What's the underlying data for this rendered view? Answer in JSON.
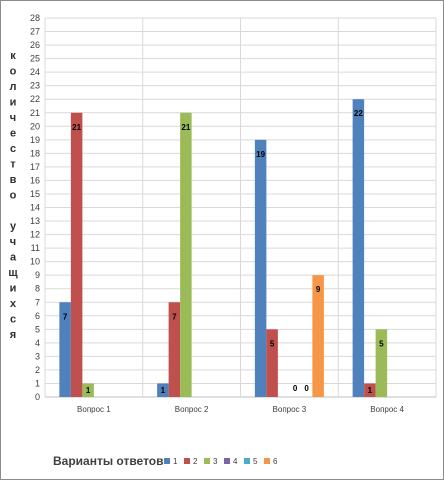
{
  "chart_data": {
    "type": "bar",
    "categories": [
      "Вопрос 1",
      "Вопрос 2",
      "Вопрос 3",
      "Вопрос 4"
    ],
    "series": [
      {
        "name": "1",
        "color": "#4f81bd",
        "values": [
          7,
          1,
          19,
          22
        ]
      },
      {
        "name": "2",
        "color": "#c0504d",
        "values": [
          21,
          7,
          5,
          1
        ]
      },
      {
        "name": "3",
        "color": "#9bbb59",
        "values": [
          1,
          21,
          null,
          5
        ]
      },
      {
        "name": "4",
        "color": "#8064a2",
        "values": [
          null,
          null,
          0,
          null
        ]
      },
      {
        "name": "5",
        "color": "#4bacc6",
        "values": [
          null,
          null,
          0,
          null
        ]
      },
      {
        "name": "6",
        "color": "#f79646",
        "values": [
          null,
          null,
          9,
          null
        ]
      }
    ],
    "data_labels": [
      [
        "7",
        "1",
        "19",
        "22"
      ],
      [
        "21",
        "7",
        "5",
        "1"
      ],
      [
        "1",
        "21",
        null,
        "5"
      ],
      [
        null,
        null,
        "0",
        null
      ],
      [
        null,
        null,
        "0",
        null
      ],
      [
        null,
        null,
        "9",
        null
      ]
    ],
    "bar_value_for_label_one": 1,
    "title": "",
    "xlabel": "Варианты ответов",
    "ylabel": "количество учащихся",
    "ylabel_lines": [
      "к",
      "о",
      "л",
      "и",
      "ч",
      "е",
      "с",
      "т",
      "в",
      "о",
      "",
      "у",
      "ч",
      "а",
      "щ",
      "и",
      "х",
      "с",
      "я"
    ],
    "ylim": [
      0,
      28
    ],
    "ytick_step": 1,
    "grid": true,
    "legend_position": "bottom"
  }
}
